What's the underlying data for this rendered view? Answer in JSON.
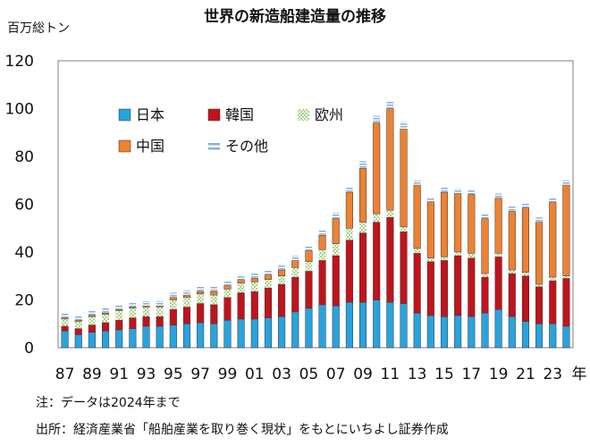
{
  "chart_data": {
    "type": "bar",
    "stacked": true,
    "title": "世界の新造船建造量の推移",
    "unit_label": "百万総トン",
    "x_unit": "年",
    "categories": [
      "87",
      "88",
      "89",
      "90",
      "91",
      "92",
      "93",
      "94",
      "95",
      "96",
      "97",
      "98",
      "99",
      "00",
      "01",
      "02",
      "03",
      "04",
      "05",
      "06",
      "07",
      "08",
      "09",
      "10",
      "11",
      "12",
      "13",
      "14",
      "15",
      "16",
      "17",
      "18",
      "19",
      "20",
      "21",
      "22",
      "23",
      "24"
    ],
    "tick_labels": [
      "87",
      "89",
      "91",
      "93",
      "95",
      "97",
      "99",
      "01",
      "03",
      "05",
      "07",
      "09",
      "11",
      "13",
      "15",
      "17",
      "19",
      "21",
      "23"
    ],
    "ylim": [
      0,
      120
    ],
    "yticks": [
      0,
      20,
      40,
      60,
      80,
      100,
      120
    ],
    "grid": false,
    "legend_position": "top-left",
    "series": [
      {
        "name": "日本",
        "color": "#29a3dc",
        "values": [
          7,
          5.5,
          6.5,
          7,
          7.5,
          8,
          9,
          9,
          9.5,
          10,
          10.5,
          10,
          11.5,
          12,
          12,
          12.5,
          13,
          15,
          16.5,
          18,
          17.5,
          19,
          19,
          20,
          19,
          18.5,
          14.5,
          13.5,
          13,
          13.5,
          13,
          14.5,
          16,
          13,
          11,
          10,
          10,
          9
        ]
      },
      {
        "name": "韓国",
        "color": "#c0141c",
        "values": [
          2,
          2.5,
          3,
          3.5,
          4,
          4.5,
          4,
          4,
          6.5,
          7,
          8,
          8,
          9.5,
          11,
          11.5,
          12.5,
          13.5,
          14.5,
          15.5,
          18.5,
          21,
          26,
          29,
          32.5,
          35.5,
          30,
          25,
          22.5,
          23.5,
          25,
          24.5,
          15,
          22,
          18,
          19,
          15.5,
          18,
          20
        ]
      },
      {
        "name": "欧州",
        "color": "#a7d28c",
        "values": [
          3,
          3,
          3.5,
          3.5,
          4,
          4,
          4,
          4,
          4,
          4,
          4,
          4,
          3.5,
          4,
          4,
          3.5,
          3.5,
          4,
          4,
          4.5,
          5,
          5,
          4.5,
          3.5,
          3,
          2,
          2,
          1.5,
          1.5,
          1.5,
          2,
          1.5,
          1.5,
          1.5,
          1.5,
          1,
          1.5,
          1
        ]
      },
      {
        "name": "中国",
        "color": "#ed8233",
        "values": [
          0.5,
          0.5,
          0.5,
          0.5,
          0.5,
          0.5,
          0.5,
          0.5,
          1,
          1,
          1,
          1.5,
          1.5,
          1.5,
          1.5,
          2,
          2.5,
          3,
          4.5,
          6,
          10.5,
          15,
          22.5,
          38,
          42.5,
          41,
          26.5,
          23.5,
          27,
          24.5,
          24.5,
          23,
          23,
          24.5,
          27,
          26,
          31.5,
          38
        ]
      },
      {
        "name": "その他",
        "color": "#8ab0d8",
        "values": [
          2,
          2,
          2,
          2,
          2,
          2,
          2,
          2,
          2,
          2,
          2,
          2,
          2,
          2,
          2,
          2,
          2,
          2,
          2,
          2.5,
          2.5,
          2.5,
          3,
          3,
          3,
          3,
          2,
          2,
          2,
          2,
          2,
          2,
          2,
          2,
          2,
          2,
          2,
          2
        ]
      }
    ]
  },
  "notes": {
    "note1": "注：データは2024年まで",
    "note2": "出所：経済産業省「船舶産業を取り巻く現状」をもとにいちよし証券作成"
  }
}
